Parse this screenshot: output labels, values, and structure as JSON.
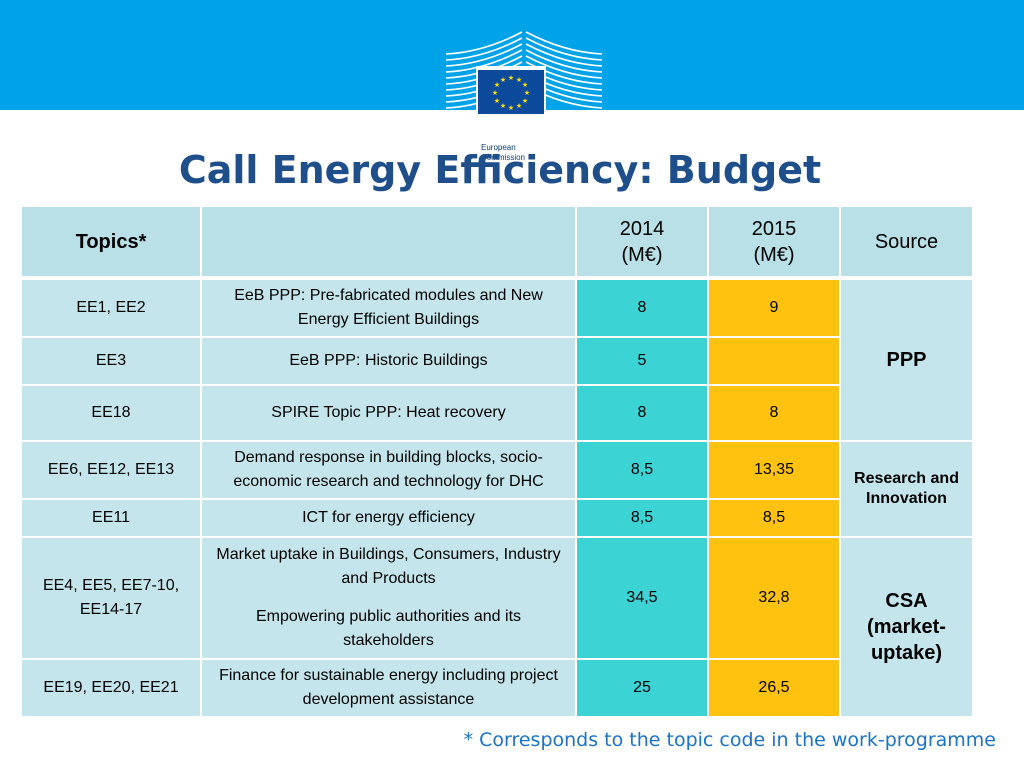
{
  "logo": {
    "line1": "European",
    "line2": "Commission"
  },
  "title": "Call Energy Efficiency: Budget",
  "table": {
    "headers": {
      "topics": "Topics*",
      "description": "",
      "y2014": "2014\n(M€)",
      "y2015": "2015\n(M€)",
      "source": "Source"
    },
    "rows": [
      {
        "topics": "EE1, EE2",
        "description": "EeB PPP: Pre-fabricated modules and New Energy Efficient Buildings",
        "v2014": "8",
        "v2015": "9"
      },
      {
        "topics": "EE3",
        "description": "EeB PPP: Historic Buildings",
        "v2014": "5",
        "v2015": ""
      },
      {
        "topics": "EE18",
        "description": "SPIRE Topic PPP: Heat recovery",
        "v2014": "8",
        "v2015": "8"
      },
      {
        "topics": "EE6, EE12, EE13",
        "description": "Demand response in building blocks, socio-economic research and technology for DHC",
        "v2014": "8,5",
        "v2015": "13,35"
      },
      {
        "topics": "EE11",
        "description": "ICT for energy efficiency",
        "v2014": "8,5",
        "v2015": "8,5"
      },
      {
        "topics": "EE4, EE5, EE7-10, EE14-17",
        "description": "Market uptake in Buildings, Consumers, Industry and Products",
        "description2": "Empowering public authorities and its stakeholders",
        "v2014": "34,5",
        "v2015": "32,8"
      },
      {
        "topics": "EE19, EE20, EE21",
        "description": "Finance for sustainable energy including project development assistance",
        "v2014": "25",
        "v2015": "26,5"
      }
    ],
    "sources": {
      "ppp": "PPP",
      "research": "Research and Innovation",
      "csa": "CSA (market-uptake)"
    }
  },
  "footnote": "* Corresponds to the topic code in the work-programme",
  "colors": {
    "band": "#00a3e8",
    "header_cell": "#b8e0e6",
    "body_cell": "#c4e5eb",
    "col2014": "#3cd3d5",
    "col2015": "#ffc20e",
    "title": "#1f4f8b",
    "footnote": "#1a73c9"
  }
}
